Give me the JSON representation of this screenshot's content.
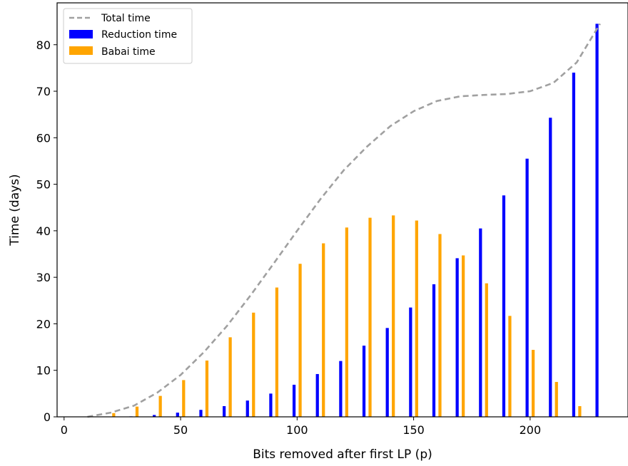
{
  "chart_data": {
    "type": "bar",
    "xlabel": "Bits removed after first LP (p)",
    "ylabel": "Time (days)",
    "xlim": [
      -3,
      242
    ],
    "ylim": [
      0,
      89
    ],
    "xticks": [
      0,
      50,
      100,
      150,
      200
    ],
    "yticks": [
      0,
      10,
      20,
      30,
      40,
      50,
      60,
      70,
      80
    ],
    "grid": false,
    "legend_position": "top-left",
    "series": [
      {
        "name": "Total time",
        "kind": "line",
        "style": "dashed",
        "color": "#A0A0A0",
        "x": [
          10,
          20,
          30,
          40,
          50,
          60,
          70,
          80,
          90,
          100,
          110,
          120,
          130,
          140,
          150,
          160,
          170,
          180,
          190,
          200,
          210,
          220,
          230
        ],
        "values": [
          0.0,
          0.9,
          2.4,
          5.2,
          9.0,
          13.9,
          19.6,
          26.1,
          33.0,
          40.0,
          46.8,
          53.0,
          58.1,
          62.5,
          65.7,
          67.9,
          68.9,
          69.2,
          69.4,
          70.0,
          71.8,
          76.2,
          84.5
        ]
      },
      {
        "name": "Reduction time",
        "kind": "bar",
        "color": "#0000FF",
        "x": [
          10,
          20,
          30,
          40,
          50,
          60,
          70,
          80,
          90,
          100,
          110,
          120,
          130,
          140,
          150,
          160,
          170,
          180,
          190,
          200,
          210,
          220,
          230
        ],
        "values": [
          0.0,
          0.0,
          0.1,
          0.4,
          0.9,
          1.5,
          2.3,
          3.5,
          5.0,
          6.9,
          9.2,
          12.0,
          15.3,
          19.1,
          23.5,
          28.5,
          34.1,
          40.5,
          47.6,
          55.5,
          64.3,
          74.0,
          84.5
        ]
      },
      {
        "name": "Babai time",
        "kind": "bar",
        "color": "#FFA500",
        "x": [
          10,
          20,
          30,
          40,
          50,
          60,
          70,
          80,
          90,
          100,
          110,
          120,
          130,
          140,
          150,
          160,
          170,
          180,
          190,
          200,
          210,
          220,
          230
        ],
        "values": [
          0.0,
          0.8,
          2.2,
          4.5,
          7.9,
          12.1,
          17.1,
          22.4,
          27.8,
          32.9,
          37.3,
          40.7,
          42.8,
          43.3,
          42.2,
          39.3,
          34.7,
          28.7,
          21.7,
          14.4,
          7.5,
          2.3,
          0.0
        ]
      }
    ]
  }
}
